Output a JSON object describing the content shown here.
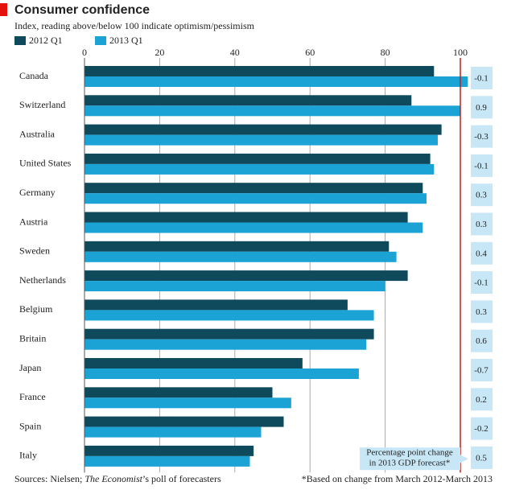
{
  "chart_data": {
    "type": "bar",
    "orientation": "horizontal",
    "title": "Consumer confidence",
    "subtitle": "Index, reading above/below 100 indicate optimism/pessimism",
    "categories": [
      "Canada",
      "Switzerland",
      "Australia",
      "United States",
      "Germany",
      "Austria",
      "Sweden",
      "Netherlands",
      "Belgium",
      "Britain",
      "Japan",
      "France",
      "Spain",
      "Italy"
    ],
    "series": [
      {
        "name": "2012 Q1",
        "color": "#0f4a5c",
        "values": [
          93,
          87,
          95,
          92,
          90,
          86,
          81,
          86,
          70,
          77,
          58,
          50,
          53,
          45
        ]
      },
      {
        "name": "2013 Q1",
        "color": "#1ba3d6",
        "values": [
          102,
          100,
          94,
          93,
          91,
          90,
          83,
          80,
          77,
          75,
          73,
          55,
          47,
          44
        ]
      }
    ],
    "xlim": [
      0,
      100
    ],
    "xticks": [
      0,
      20,
      40,
      60,
      80,
      100
    ],
    "grid": true,
    "reference_line": 100,
    "reference_color": "#c0201a",
    "gdp_change": {
      "label": [
        "Percentage point change",
        "in 2013 GDP forecast*"
      ],
      "color": "#c8e7f6",
      "values": [
        -0.1,
        0.9,
        -0.3,
        -0.1,
        0.3,
        0.3,
        0.4,
        -0.1,
        0.3,
        0.6,
        -0.7,
        0.2,
        -0.2,
        0.5
      ]
    },
    "source": [
      "Sources: Nielsen; ",
      "The Economist",
      "’s poll of forecasters"
    ],
    "footnote": "*Based on change from March 2012-March 2013"
  }
}
